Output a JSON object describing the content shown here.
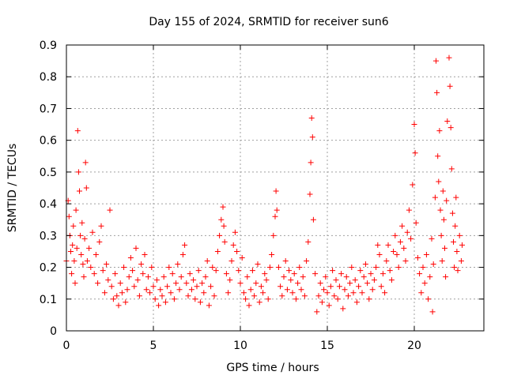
{
  "chart_data": {
    "type": "scatter",
    "title": "Day 155 of 2024, SRMTID for receiver sun6",
    "xlabel": "GPS time / hours",
    "ylabel": "SRMTID / TECUs",
    "xlim": [
      0,
      24
    ],
    "ylim": [
      0,
      0.9
    ],
    "xticks": [
      0,
      5,
      10,
      15,
      20
    ],
    "yticks": [
      0,
      0.1,
      0.2,
      0.3,
      0.4,
      0.5,
      0.6,
      0.7,
      0.8,
      0.9
    ],
    "grid": true,
    "marker": "plus",
    "color": "#ff0000",
    "series": [
      {
        "name": "sun6",
        "points": [
          [
            0.0,
            0.22
          ],
          [
            0.1,
            0.41
          ],
          [
            0.15,
            0.36
          ],
          [
            0.2,
            0.3
          ],
          [
            0.25,
            0.25
          ],
          [
            0.3,
            0.18
          ],
          [
            0.35,
            0.27
          ],
          [
            0.4,
            0.33
          ],
          [
            0.45,
            0.22
          ],
          [
            0.5,
            0.15
          ],
          [
            0.55,
            0.38
          ],
          [
            0.6,
            0.26
          ],
          [
            0.65,
            0.63
          ],
          [
            0.7,
            0.5
          ],
          [
            0.75,
            0.44
          ],
          [
            0.8,
            0.3
          ],
          [
            0.85,
            0.24
          ],
          [
            0.9,
            0.34
          ],
          [
            0.95,
            0.21
          ],
          [
            1.0,
            0.17
          ],
          [
            1.05,
            0.29
          ],
          [
            1.1,
            0.53
          ],
          [
            1.15,
            0.45
          ],
          [
            1.2,
            0.22
          ],
          [
            1.3,
            0.26
          ],
          [
            1.4,
            0.2
          ],
          [
            1.5,
            0.31
          ],
          [
            1.6,
            0.18
          ],
          [
            1.7,
            0.24
          ],
          [
            1.8,
            0.15
          ],
          [
            1.9,
            0.28
          ],
          [
            2.0,
            0.33
          ],
          [
            2.1,
            0.19
          ],
          [
            2.2,
            0.12
          ],
          [
            2.3,
            0.21
          ],
          [
            2.4,
            0.16
          ],
          [
            2.5,
            0.38
          ],
          [
            2.6,
            0.14
          ],
          [
            2.7,
            0.1
          ],
          [
            2.8,
            0.18
          ],
          [
            2.9,
            0.11
          ],
          [
            3.0,
            0.08
          ],
          [
            3.1,
            0.15
          ],
          [
            3.2,
            0.12
          ],
          [
            3.3,
            0.2
          ],
          [
            3.4,
            0.09
          ],
          [
            3.5,
            0.13
          ],
          [
            3.6,
            0.17
          ],
          [
            3.7,
            0.23
          ],
          [
            3.8,
            0.19
          ],
          [
            3.9,
            0.14
          ],
          [
            4.0,
            0.26
          ],
          [
            4.1,
            0.16
          ],
          [
            4.2,
            0.11
          ],
          [
            4.3,
            0.21
          ],
          [
            4.4,
            0.18
          ],
          [
            4.5,
            0.24
          ],
          [
            4.6,
            0.13
          ],
          [
            4.7,
            0.17
          ],
          [
            4.8,
            0.12
          ],
          [
            4.9,
            0.2
          ],
          [
            5.0,
            0.14
          ],
          [
            5.1,
            0.1
          ],
          [
            5.2,
            0.16
          ],
          [
            5.3,
            0.08
          ],
          [
            5.4,
            0.13
          ],
          [
            5.5,
            0.11
          ],
          [
            5.6,
            0.17
          ],
          [
            5.7,
            0.09
          ],
          [
            5.8,
            0.14
          ],
          [
            5.9,
            0.2
          ],
          [
            6.0,
            0.12
          ],
          [
            6.1,
            0.18
          ],
          [
            6.2,
            0.1
          ],
          [
            6.3,
            0.15
          ],
          [
            6.4,
            0.21
          ],
          [
            6.5,
            0.13
          ],
          [
            6.6,
            0.17
          ],
          [
            6.7,
            0.24
          ],
          [
            6.8,
            0.27
          ],
          [
            6.9,
            0.15
          ],
          [
            7.0,
            0.11
          ],
          [
            7.1,
            0.18
          ],
          [
            7.2,
            0.13
          ],
          [
            7.3,
            0.16
          ],
          [
            7.4,
            0.1
          ],
          [
            7.5,
            0.14
          ],
          [
            7.6,
            0.19
          ],
          [
            7.7,
            0.09
          ],
          [
            7.8,
            0.15
          ],
          [
            7.9,
            0.12
          ],
          [
            8.0,
            0.17
          ],
          [
            8.1,
            0.22
          ],
          [
            8.2,
            0.08
          ],
          [
            8.3,
            0.14
          ],
          [
            8.4,
            0.2
          ],
          [
            8.5,
            0.11
          ],
          [
            8.6,
            0.19
          ],
          [
            8.7,
            0.25
          ],
          [
            8.8,
            0.3
          ],
          [
            8.9,
            0.35
          ],
          [
            9.0,
            0.39
          ],
          [
            9.05,
            0.33
          ],
          [
            9.1,
            0.28
          ],
          [
            9.2,
            0.18
          ],
          [
            9.3,
            0.12
          ],
          [
            9.4,
            0.16
          ],
          [
            9.5,
            0.22
          ],
          [
            9.6,
            0.27
          ],
          [
            9.7,
            0.31
          ],
          [
            9.8,
            0.25
          ],
          [
            9.9,
            0.19
          ],
          [
            10.0,
            0.15
          ],
          [
            10.1,
            0.23
          ],
          [
            10.2,
            0.12
          ],
          [
            10.3,
            0.1
          ],
          [
            10.4,
            0.17
          ],
          [
            10.5,
            0.08
          ],
          [
            10.6,
            0.13
          ],
          [
            10.7,
            0.19
          ],
          [
            10.8,
            0.11
          ],
          [
            10.9,
            0.15
          ],
          [
            11.0,
            0.21
          ],
          [
            11.1,
            0.09
          ],
          [
            11.2,
            0.14
          ],
          [
            11.3,
            0.12
          ],
          [
            11.4,
            0.18
          ],
          [
            11.5,
            0.16
          ],
          [
            11.6,
            0.1
          ],
          [
            11.7,
            0.2
          ],
          [
            11.8,
            0.24
          ],
          [
            11.9,
            0.3
          ],
          [
            12.0,
            0.36
          ],
          [
            12.05,
            0.44
          ],
          [
            12.1,
            0.38
          ],
          [
            12.2,
            0.2
          ],
          [
            12.3,
            0.14
          ],
          [
            12.4,
            0.11
          ],
          [
            12.5,
            0.17
          ],
          [
            12.6,
            0.22
          ],
          [
            12.7,
            0.13
          ],
          [
            12.8,
            0.19
          ],
          [
            12.9,
            0.16
          ],
          [
            13.0,
            0.12
          ],
          [
            13.1,
            0.18
          ],
          [
            13.2,
            0.1
          ],
          [
            13.3,
            0.15
          ],
          [
            13.4,
            0.2
          ],
          [
            13.5,
            0.13
          ],
          [
            13.6,
            0.17
          ],
          [
            13.7,
            0.11
          ],
          [
            13.8,
            0.22
          ],
          [
            13.9,
            0.28
          ],
          [
            14.0,
            0.43
          ],
          [
            14.05,
            0.53
          ],
          [
            14.1,
            0.67
          ],
          [
            14.15,
            0.61
          ],
          [
            14.2,
            0.35
          ],
          [
            14.3,
            0.18
          ],
          [
            14.4,
            0.06
          ],
          [
            14.5,
            0.11
          ],
          [
            14.6,
            0.15
          ],
          [
            14.7,
            0.09
          ],
          [
            14.8,
            0.13
          ],
          [
            14.9,
            0.17
          ],
          [
            15.0,
            0.12
          ],
          [
            15.1,
            0.08
          ],
          [
            15.2,
            0.14
          ],
          [
            15.3,
            0.19
          ],
          [
            15.4,
            0.11
          ],
          [
            15.5,
            0.16
          ],
          [
            15.6,
            0.1
          ],
          [
            15.7,
            0.14
          ],
          [
            15.8,
            0.18
          ],
          [
            15.9,
            0.07
          ],
          [
            16.0,
            0.13
          ],
          [
            16.1,
            0.17
          ],
          [
            16.2,
            0.11
          ],
          [
            16.3,
            0.15
          ],
          [
            16.4,
            0.2
          ],
          [
            16.5,
            0.12
          ],
          [
            16.6,
            0.16
          ],
          [
            16.7,
            0.09
          ],
          [
            16.8,
            0.14
          ],
          [
            16.9,
            0.19
          ],
          [
            17.0,
            0.12
          ],
          [
            17.1,
            0.17
          ],
          [
            17.2,
            0.21
          ],
          [
            17.3,
            0.15
          ],
          [
            17.4,
            0.1
          ],
          [
            17.5,
            0.18
          ],
          [
            17.6,
            0.13
          ],
          [
            17.7,
            0.16
          ],
          [
            17.8,
            0.2
          ],
          [
            17.9,
            0.27
          ],
          [
            18.0,
            0.24
          ],
          [
            18.1,
            0.14
          ],
          [
            18.2,
            0.18
          ],
          [
            18.3,
            0.12
          ],
          [
            18.4,
            0.22
          ],
          [
            18.5,
            0.27
          ],
          [
            18.6,
            0.19
          ],
          [
            18.7,
            0.16
          ],
          [
            18.8,
            0.25
          ],
          [
            18.9,
            0.3
          ],
          [
            19.0,
            0.24
          ],
          [
            19.1,
            0.2
          ],
          [
            19.2,
            0.28
          ],
          [
            19.3,
            0.33
          ],
          [
            19.4,
            0.26
          ],
          [
            19.5,
            0.22
          ],
          [
            19.6,
            0.31
          ],
          [
            19.7,
            0.38
          ],
          [
            19.8,
            0.29
          ],
          [
            19.9,
            0.46
          ],
          [
            20.0,
            0.65
          ],
          [
            20.05,
            0.56
          ],
          [
            20.1,
            0.34
          ],
          [
            20.2,
            0.23
          ],
          [
            20.3,
            0.18
          ],
          [
            20.4,
            0.12
          ],
          [
            20.5,
            0.2
          ],
          [
            20.6,
            0.15
          ],
          [
            20.7,
            0.24
          ],
          [
            20.8,
            0.1
          ],
          [
            20.9,
            0.17
          ],
          [
            21.0,
            0.29
          ],
          [
            21.05,
            0.06
          ],
          [
            21.1,
            0.21
          ],
          [
            21.2,
            0.42
          ],
          [
            21.25,
            0.85
          ],
          [
            21.3,
            0.75
          ],
          [
            21.35,
            0.55
          ],
          [
            21.4,
            0.47
          ],
          [
            21.45,
            0.63
          ],
          [
            21.5,
            0.38
          ],
          [
            21.55,
            0.3
          ],
          [
            21.6,
            0.22
          ],
          [
            21.65,
            0.44
          ],
          [
            21.7,
            0.35
          ],
          [
            21.75,
            0.26
          ],
          [
            21.8,
            0.17
          ],
          [
            21.85,
            0.41
          ],
          [
            21.9,
            0.66
          ],
          [
            22.0,
            0.86
          ],
          [
            22.05,
            0.77
          ],
          [
            22.1,
            0.64
          ],
          [
            22.15,
            0.51
          ],
          [
            22.2,
            0.37
          ],
          [
            22.25,
            0.28
          ],
          [
            22.3,
            0.2
          ],
          [
            22.35,
            0.33
          ],
          [
            22.4,
            0.42
          ],
          [
            22.45,
            0.25
          ],
          [
            22.5,
            0.19
          ],
          [
            22.6,
            0.3
          ],
          [
            22.7,
            0.22
          ],
          [
            22.75,
            0.27
          ]
        ]
      }
    ]
  }
}
